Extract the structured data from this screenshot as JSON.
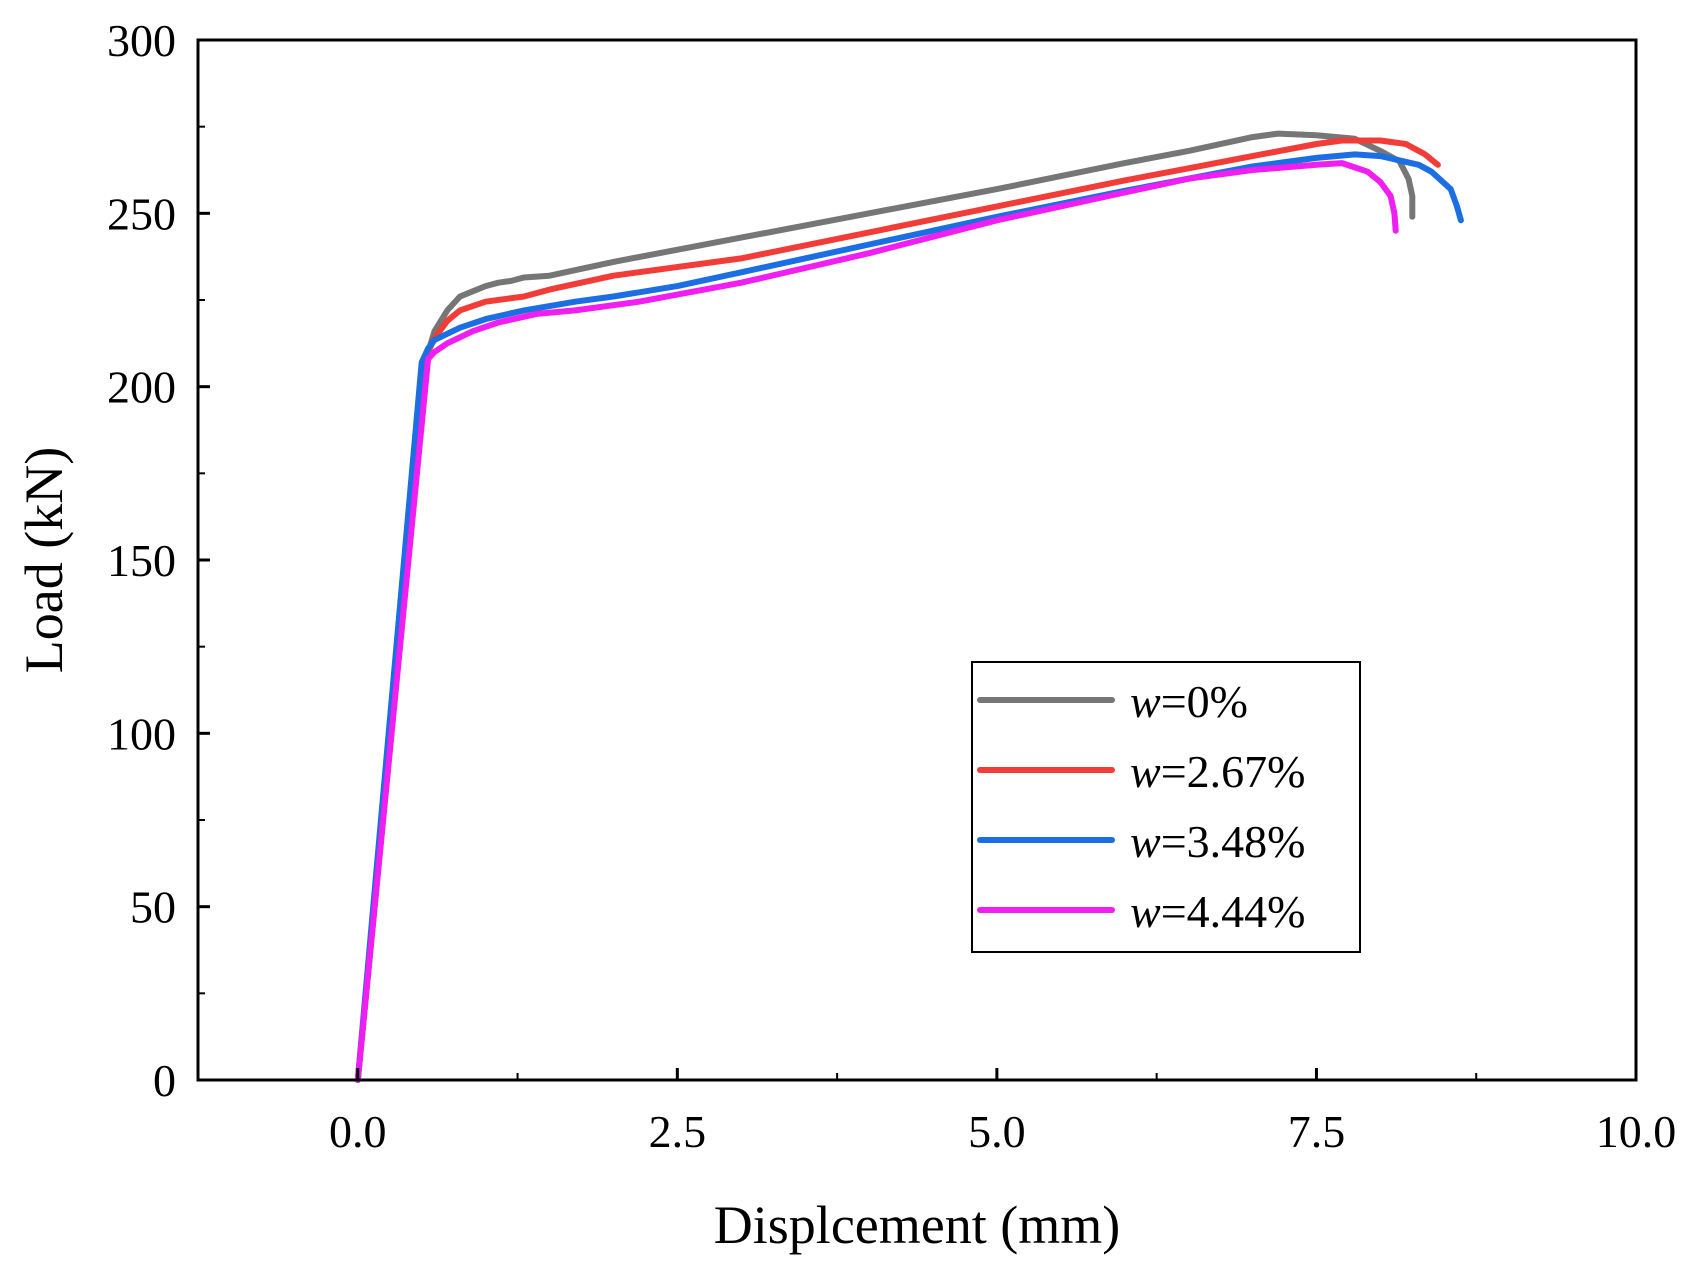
{
  "chart_data": {
    "type": "line",
    "title": "",
    "xlabel": "Displcement (mm)",
    "ylabel": "Load (kN)",
    "xlim": [
      -1.25,
      10.0
    ],
    "ylim": [
      0,
      300
    ],
    "x_ticks": [
      "0.0",
      "2.5",
      "5.0",
      "7.5",
      "10.0"
    ],
    "y_ticks": [
      "0",
      "50",
      "100",
      "150",
      "200",
      "250",
      "300"
    ],
    "legend_position": "lower-right",
    "grid": false,
    "series": [
      {
        "name": "w=0%",
        "var": "w",
        "value_label": "=0%",
        "color": "#767676",
        "points": [
          [
            0.0,
            0
          ],
          [
            0.55,
            210
          ],
          [
            0.6,
            216
          ],
          [
            0.7,
            222
          ],
          [
            0.8,
            226
          ],
          [
            0.9,
            227.5
          ],
          [
            1.0,
            229
          ],
          [
            1.1,
            230
          ],
          [
            1.2,
            230.5
          ],
          [
            1.3,
            231.5
          ],
          [
            1.5,
            232
          ],
          [
            2.0,
            236
          ],
          [
            3.0,
            243
          ],
          [
            4.0,
            250
          ],
          [
            5.0,
            257
          ],
          [
            6.0,
            264.5
          ],
          [
            6.5,
            268
          ],
          [
            7.0,
            272
          ],
          [
            7.2,
            273
          ],
          [
            7.5,
            272.5
          ],
          [
            7.8,
            271.5
          ],
          [
            8.0,
            268
          ],
          [
            8.15,
            265
          ],
          [
            8.22,
            260
          ],
          [
            8.25,
            255
          ],
          [
            8.25,
            249
          ]
        ]
      },
      {
        "name": "w=2.67%",
        "var": "w",
        "value_label": "=2.67%",
        "color": "#f23c38",
        "points": [
          [
            0.0,
            0
          ],
          [
            0.55,
            210
          ],
          [
            0.6,
            214
          ],
          [
            0.7,
            219
          ],
          [
            0.8,
            222
          ],
          [
            1.0,
            224.5
          ],
          [
            1.3,
            226
          ],
          [
            1.5,
            228
          ],
          [
            2.0,
            232
          ],
          [
            3.0,
            237
          ],
          [
            4.0,
            244.5
          ],
          [
            5.0,
            252
          ],
          [
            6.0,
            259.5
          ],
          [
            6.5,
            263
          ],
          [
            7.0,
            266.5
          ],
          [
            7.5,
            270
          ],
          [
            7.7,
            271
          ],
          [
            8.0,
            271
          ],
          [
            8.2,
            270
          ],
          [
            8.35,
            267
          ],
          [
            8.45,
            264
          ]
        ]
      },
      {
        "name": "w=3.48%",
        "var": "w",
        "value_label": "=3.48%",
        "color": "#1b6fe2",
        "points": [
          [
            0.0,
            0
          ],
          [
            0.5,
            207
          ],
          [
            0.55,
            211
          ],
          [
            0.6,
            213.5
          ],
          [
            0.8,
            217
          ],
          [
            1.0,
            219.5
          ],
          [
            1.3,
            222
          ],
          [
            1.7,
            224.5
          ],
          [
            2.0,
            226
          ],
          [
            2.5,
            229
          ],
          [
            3.0,
            233
          ],
          [
            4.0,
            241
          ],
          [
            5.0,
            249
          ],
          [
            6.0,
            256.5
          ],
          [
            7.0,
            263.5
          ],
          [
            7.5,
            266
          ],
          [
            7.8,
            267
          ],
          [
            8.0,
            266.5
          ],
          [
            8.3,
            264
          ],
          [
            8.4,
            262
          ],
          [
            8.55,
            257
          ],
          [
            8.6,
            252
          ],
          [
            8.63,
            248
          ]
        ]
      },
      {
        "name": "w=4.44%",
        "var": "w",
        "value_label": "=4.44%",
        "color": "#f01ef0",
        "points": [
          [
            0.0,
            0
          ],
          [
            0.55,
            208
          ],
          [
            0.6,
            210
          ],
          [
            0.7,
            212.5
          ],
          [
            0.9,
            216
          ],
          [
            1.1,
            218.5
          ],
          [
            1.4,
            221
          ],
          [
            1.7,
            222
          ],
          [
            2.0,
            223.5
          ],
          [
            2.2,
            224.5
          ],
          [
            3.0,
            230
          ],
          [
            4.0,
            238.5
          ],
          [
            5.0,
            248
          ],
          [
            6.0,
            256
          ],
          [
            6.5,
            260
          ],
          [
            7.0,
            262.5
          ],
          [
            7.5,
            264
          ],
          [
            7.7,
            264.5
          ],
          [
            7.9,
            262
          ],
          [
            8.0,
            259
          ],
          [
            8.08,
            255
          ],
          [
            8.11,
            250
          ],
          [
            8.12,
            245
          ]
        ]
      }
    ]
  }
}
